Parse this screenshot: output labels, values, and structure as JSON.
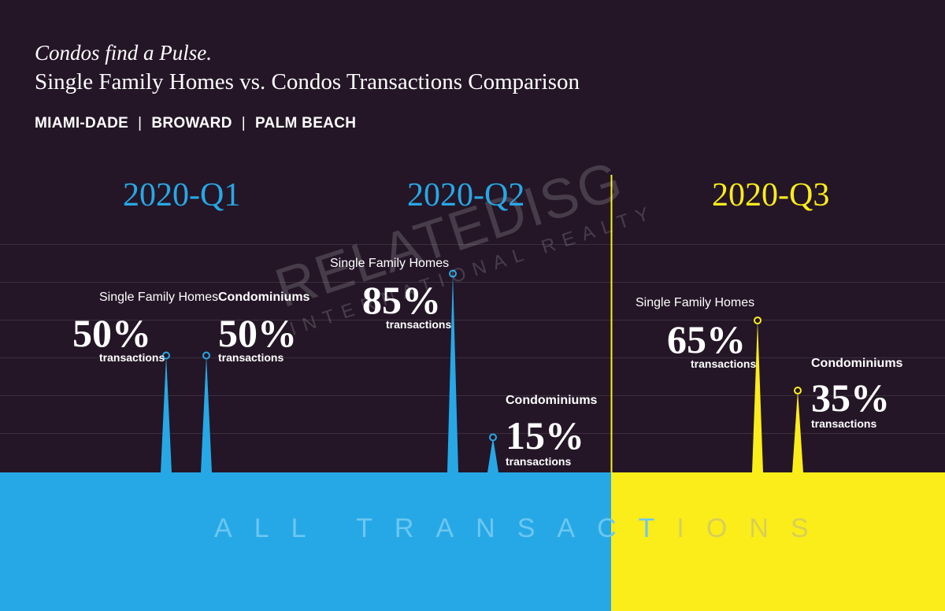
{
  "header": {
    "title": "Condos find a Pulse.",
    "subtitle": "Single Family Homes vs. Condos Transactions Comparison",
    "regions": [
      "MIAMI-DADE",
      "BROWARD",
      "PALM BEACH"
    ]
  },
  "footer": {
    "label": "ALL TRANSACTIONS"
  },
  "watermark": {
    "brand": "RELATEDISG",
    "tagline": "INTERNATIONAL REALTY"
  },
  "colors": {
    "background": "#241627",
    "blue": "#27a8e6",
    "yellow": "#fbed1a"
  },
  "chart_data": {
    "type": "bar",
    "unit": "%",
    "categories": [
      "2020-Q1",
      "2020-Q2",
      "2020-Q3"
    ],
    "series": [
      {
        "name": "Single Family Homes",
        "values": [
          50,
          85,
          65
        ]
      },
      {
        "name": "Condominiums",
        "values": [
          50,
          15,
          35
        ]
      }
    ],
    "value_caption": "transactions",
    "ylim": [
      0,
      100
    ],
    "grid": true
  }
}
